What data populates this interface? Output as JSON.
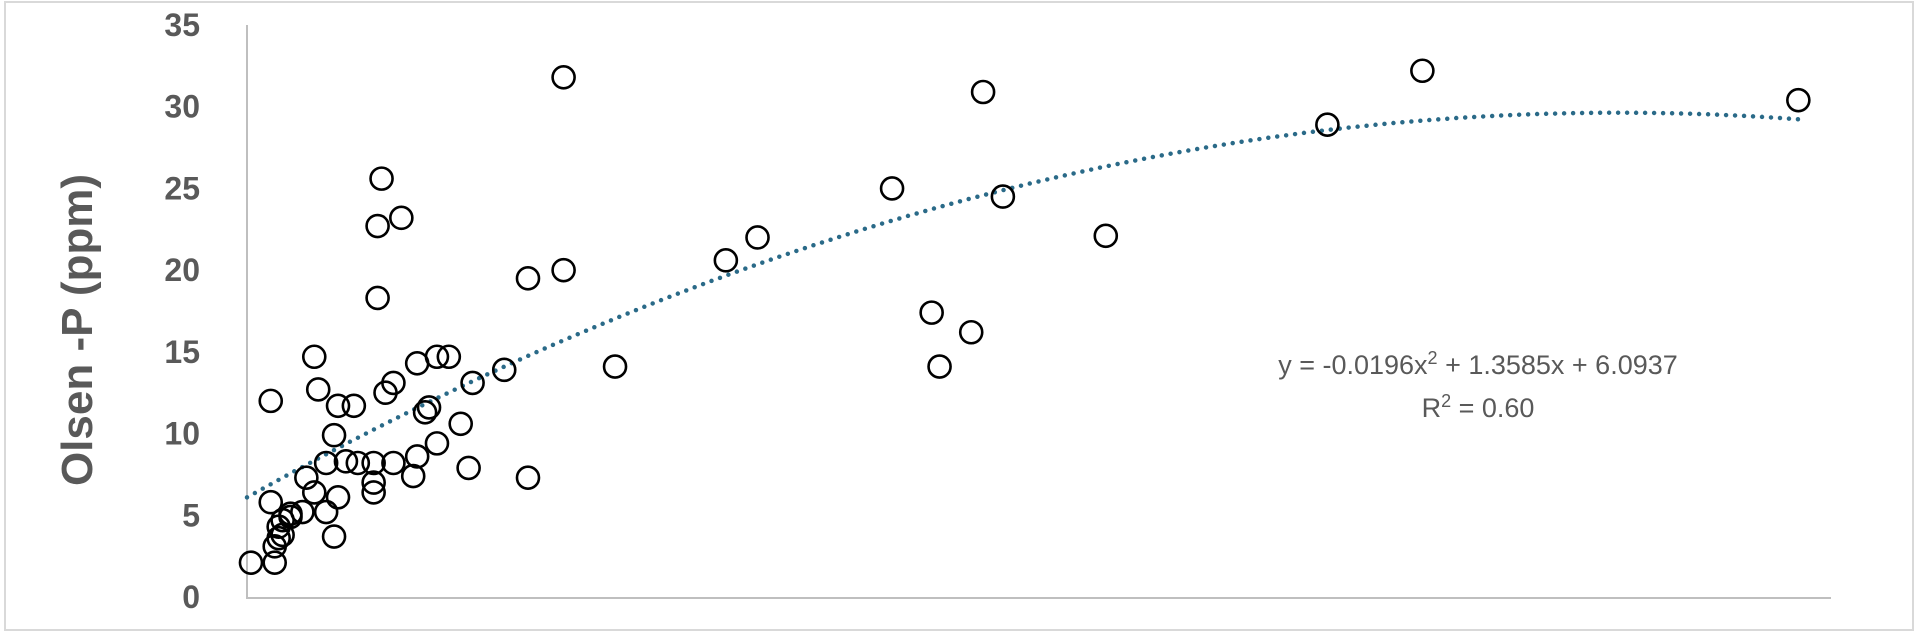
{
  "chart_data": {
    "type": "scatter",
    "title": "",
    "xlabel": "",
    "ylabel": "Olsen -P (ppm)",
    "xlim": [
      0,
      40
    ],
    "ylim": [
      0,
      35
    ],
    "y_ticks": [
      0,
      5,
      10,
      15,
      20,
      25,
      30,
      35
    ],
    "x_ticks_shown": false,
    "grid": false,
    "marker": "open-circle",
    "points": [
      [
        0.1,
        2.1
      ],
      [
        0.7,
        2.1
      ],
      [
        0.6,
        12.0
      ],
      [
        0.6,
        5.8
      ],
      [
        0.7,
        3.1
      ],
      [
        0.8,
        4.3
      ],
      [
        0.8,
        3.6
      ],
      [
        0.9,
        3.8
      ],
      [
        0.9,
        4.7
      ],
      [
        1.1,
        4.9
      ],
      [
        1.1,
        5.1
      ],
      [
        1.4,
        5.2
      ],
      [
        1.5,
        7.3
      ],
      [
        1.7,
        6.4
      ],
      [
        1.7,
        14.7
      ],
      [
        1.8,
        12.7
      ],
      [
        2.0,
        5.2
      ],
      [
        2.0,
        8.2
      ],
      [
        2.2,
        3.7
      ],
      [
        2.2,
        9.9
      ],
      [
        2.3,
        6.1
      ],
      [
        2.3,
        11.7
      ],
      [
        2.5,
        8.3
      ],
      [
        2.7,
        11.7
      ],
      [
        2.8,
        8.2
      ],
      [
        3.2,
        6.4
      ],
      [
        3.2,
        8.2
      ],
      [
        3.2,
        7.0
      ],
      [
        3.3,
        22.7
      ],
      [
        3.3,
        18.3
      ],
      [
        3.4,
        25.6
      ],
      [
        3.5,
        12.5
      ],
      [
        3.7,
        13.1
      ],
      [
        3.7,
        8.2
      ],
      [
        3.9,
        23.2
      ],
      [
        4.2,
        7.4
      ],
      [
        4.3,
        8.6
      ],
      [
        4.3,
        14.3
      ],
      [
        4.5,
        11.3
      ],
      [
        4.6,
        11.6
      ],
      [
        4.8,
        14.7
      ],
      [
        4.8,
        9.4
      ],
      [
        5.1,
        14.7
      ],
      [
        5.4,
        10.6
      ],
      [
        5.6,
        7.9
      ],
      [
        5.7,
        13.1
      ],
      [
        6.5,
        13.9
      ],
      [
        7.1,
        19.5
      ],
      [
        7.1,
        7.3
      ],
      [
        8.0,
        31.8
      ],
      [
        8.0,
        20.0
      ],
      [
        9.3,
        14.1
      ],
      [
        12.1,
        20.6
      ],
      [
        12.9,
        22.0
      ],
      [
        16.3,
        25.0
      ],
      [
        17.3,
        17.4
      ],
      [
        17.5,
        14.1
      ],
      [
        18.3,
        16.2
      ],
      [
        18.6,
        30.9
      ],
      [
        19.1,
        24.5
      ],
      [
        21.7,
        22.1
      ],
      [
        27.3,
        28.9
      ],
      [
        29.7,
        32.2
      ],
      [
        39.2,
        30.4
      ]
    ],
    "trendline": {
      "type": "polynomial-2",
      "coefficients": [
        -0.0196,
        1.3585,
        6.0937
      ],
      "x_range": [
        0,
        39.2
      ],
      "style": "dotted",
      "color": "#2A6A88",
      "equation_label": "y = -0.0196x",
      "equation_sup": "2",
      "equation_rest": " + 1.3585x + 6.0937",
      "r2_label": "R",
      "r2_sup": "2",
      "r2_rest": " = 0.60"
    },
    "colors": {
      "marker_stroke": "#000000",
      "axis": "#BFBFBF",
      "text": "#595959"
    }
  }
}
